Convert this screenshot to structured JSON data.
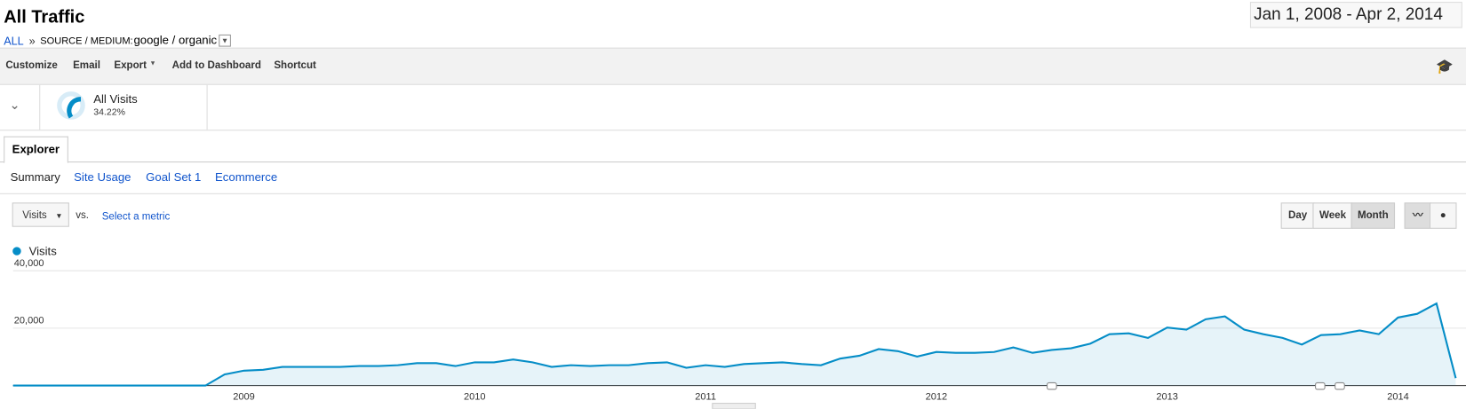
{
  "header": {
    "title": "All Traffic",
    "breadcrumb_root": "ALL",
    "breadcrumb_sep": "»",
    "dimension": "SOURCE / MEDIUM:",
    "dimension_value": "google / organic",
    "date_range": "Jan 1, 2008 - Apr 2, 2014"
  },
  "toolbar": [
    "Customize",
    "Email",
    "Export",
    "Add to Dashboard",
    "Shortcut"
  ],
  "segment": {
    "name": "All Visits",
    "value": 34.22,
    "value_label": "34.22%"
  },
  "tabs": [
    "Explorer"
  ],
  "subtabs": [
    "Summary",
    "Site Usage",
    "Goal Set 1",
    "Ecommerce"
  ],
  "metric": {
    "selected": "Visits",
    "vs": "vs.",
    "select": "Select a metric"
  },
  "granularity": [
    "Day",
    "Week",
    "Month"
  ],
  "chart_data": {
    "type": "line",
    "area": true,
    "legend": "top-left",
    "grid": true,
    "categories": [
      null,
      null,
      null,
      null,
      null,
      null,
      null,
      null,
      null,
      null,
      null,
      null,
      "2009",
      null,
      null,
      null,
      null,
      null,
      null,
      null,
      null,
      null,
      null,
      null,
      "2010",
      null,
      null,
      null,
      null,
      null,
      null,
      null,
      null,
      null,
      null,
      null,
      "2011",
      null,
      null,
      null,
      null,
      null,
      null,
      null,
      null,
      null,
      null,
      null,
      "2012",
      null,
      null,
      null,
      null,
      null,
      null,
      null,
      null,
      null,
      null,
      null,
      "2013",
      null,
      null,
      null,
      null,
      null,
      null,
      null,
      null,
      null,
      null,
      null,
      "2014",
      null,
      null,
      null
    ],
    "series": [
      {
        "name": "Visits",
        "color": "#058dc7",
        "values": [
          0,
          0,
          0,
          0,
          0,
          0,
          0,
          0,
          0,
          0,
          0,
          3900,
          5200,
          5500,
          6500,
          6500,
          6500,
          6500,
          6800,
          6800,
          7100,
          7800,
          7800,
          6800,
          8100,
          8100,
          9100,
          8100,
          6500,
          7100,
          6800,
          7100,
          7100,
          7800,
          8100,
          6200,
          7100,
          6500,
          7500,
          7800,
          8100,
          7500,
          7100,
          9400,
          10400,
          12700,
          12000,
          10100,
          11700,
          11400,
          11400,
          11700,
          13300,
          11400,
          12400,
          13000,
          14600,
          17900,
          18200,
          16600,
          20200,
          19500,
          23100,
          24100,
          19500,
          17900,
          16600,
          14300,
          17600,
          17900,
          19200,
          17900,
          23700,
          25000,
          28600,
          2600
        ]
      }
    ],
    "ylim": [
      0,
      40000
    ],
    "yticks": [
      {
        "value": 20000,
        "label": "20,000"
      },
      {
        "value": 40000,
        "label": "40,000"
      }
    ]
  }
}
